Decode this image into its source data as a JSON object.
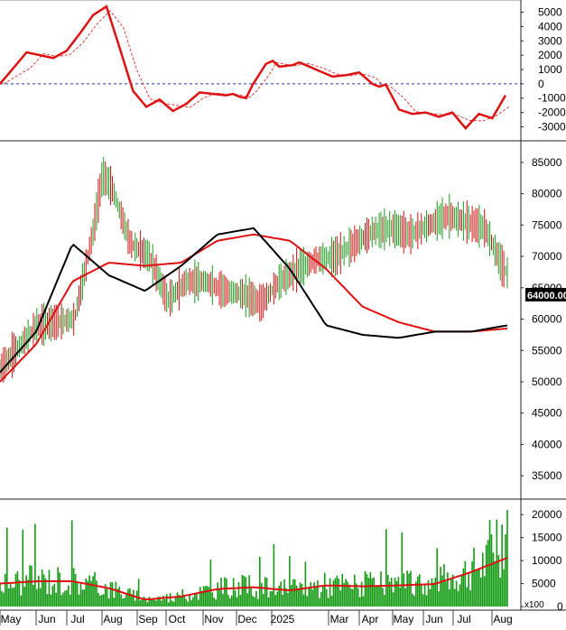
{
  "colors": {
    "up": "#1f9a1f",
    "down": "#cc1111",
    "ma_red": "#dd1111",
    "ma_black": "#000000",
    "zero_line": "#2233bb",
    "signal": "#dd1111",
    "volume": "#119911",
    "badge_bg": "#000000",
    "badge_text": "#ffffff"
  },
  "months": [
    "May",
    "Jun",
    "Jul",
    "Aug",
    "Sep",
    "Oct",
    "Nov",
    "Dec",
    "2025",
    "Mar",
    "Apr",
    "May",
    "Jun",
    "Jul",
    "Aug"
  ],
  "chart_data": [
    {
      "type": "line",
      "title": "",
      "ylim": [
        -3600,
        5600
      ],
      "yticks": [
        5000,
        4000,
        3000,
        2000,
        1000,
        0,
        -1000,
        -2000,
        -3000
      ],
      "zero_line": true,
      "series": [
        {
          "style": "solid",
          "x": [
            0,
            2,
            3,
            4,
            5,
            6,
            7,
            8,
            9,
            10,
            11,
            12,
            13,
            14,
            15,
            16,
            17,
            17.5,
            18,
            18.5,
            19,
            20,
            20.5,
            21,
            22,
            22.5,
            23,
            24,
            25,
            26,
            27,
            28,
            28.5,
            29,
            30,
            31,
            32,
            33,
            34,
            35,
            36,
            37,
            38
          ],
          "y": [
            0,
            2200,
            2000,
            1800,
            2300,
            3500,
            4800,
            5400,
            2500,
            -500,
            -1600,
            -1100,
            -1900,
            -1400,
            -600,
            -700,
            -800,
            -700,
            -900,
            -1000,
            -50,
            1400,
            1600,
            1200,
            1300,
            1500,
            1300,
            900,
            500,
            600,
            800,
            0,
            -200,
            -50,
            -1800,
            -2100,
            -2000,
            -2300,
            -2000,
            -3100,
            -2100,
            -2400,
            -800
          ],
          "note": "indicator oscillator"
        }
      ]
    },
    {
      "type": "line",
      "title": "",
      "ylim": [
        32000,
        87000
      ],
      "yticks": [
        85000,
        80000,
        75000,
        70000,
        65000,
        60000,
        55000,
        50000,
        45000,
        40000,
        35000
      ],
      "last_price_label": "64000.00",
      "series": [
        {
          "x": [
            0,
            4,
            8,
            12,
            16,
            20,
            24,
            28,
            32,
            36,
            40,
            44,
            48,
            52,
            56
          ],
          "y": [
            50000,
            56000,
            66000,
            69000,
            68500,
            69000,
            72500,
            73500,
            72500,
            68000,
            62000,
            59500,
            58000,
            58000,
            58500
          ],
          "note": "slow moving average"
        },
        {
          "x": [
            0,
            4,
            8,
            12,
            16,
            20,
            24,
            28,
            32,
            36,
            40,
            44,
            48,
            52,
            56
          ],
          "y": [
            51500,
            58000,
            72000,
            67000,
            64500,
            68500,
            73500,
            74500,
            68000,
            59000,
            57500,
            57000,
            58000,
            58000,
            59000
          ],
          "note": "fast moving average"
        }
      ]
    },
    {
      "type": "bar",
      "title": "",
      "ylim": [
        0,
        22000
      ],
      "yticks": [
        20000,
        15000,
        10000,
        5000,
        0
      ],
      "unit_label": "x100",
      "series": [
        {
          "x": [
            0,
            4,
            8,
            12,
            16,
            20,
            24,
            28,
            32,
            36,
            40,
            44,
            48,
            52,
            56
          ],
          "y": [
            5000,
            5500,
            5500,
            4000,
            1500,
            2200,
            3800,
            4200,
            3500,
            4600,
            4400,
            4600,
            4900,
            7500,
            10600
          ],
          "note": "volume moving average"
        }
      ]
    }
  ]
}
